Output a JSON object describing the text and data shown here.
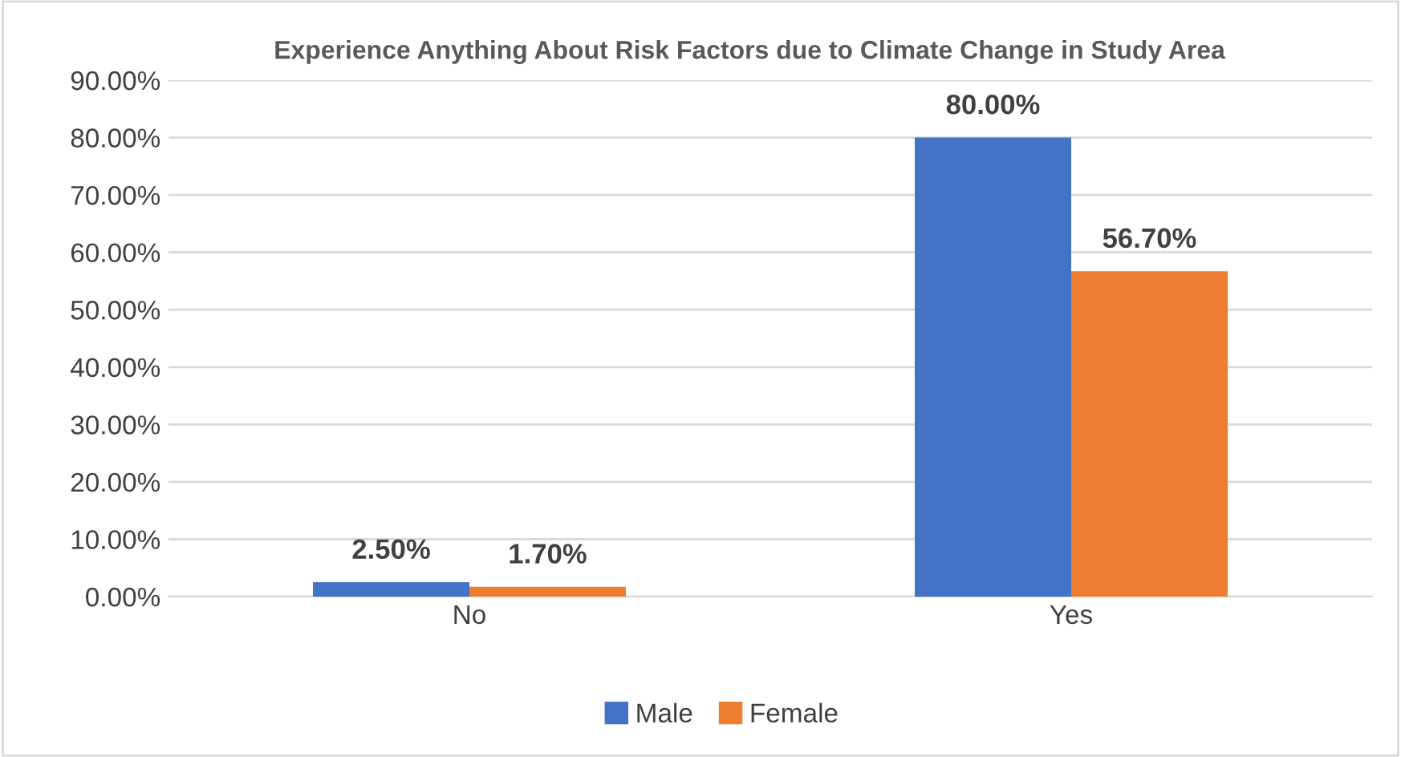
{
  "chart_data": {
    "type": "bar",
    "title": "Experience Anything About Risk Factors due to Climate Change in Study Area",
    "categories": [
      "No",
      "Yes"
    ],
    "series": [
      {
        "name": "Male",
        "color": "#4472c4",
        "values": [
          2.5,
          80
        ],
        "value_labels": [
          "2.50%",
          "80.00%"
        ]
      },
      {
        "name": "Female",
        "color": "#ed7d31",
        "values": [
          1.7,
          56.7
        ],
        "value_labels": [
          "1.70%",
          "56.70%"
        ]
      }
    ],
    "ylim": [
      0,
      90
    ],
    "yticks": [
      {
        "value": 0,
        "label": "0.00%"
      },
      {
        "value": 10,
        "label": "10.00%"
      },
      {
        "value": 20,
        "label": "20.00%"
      },
      {
        "value": 30,
        "label": "30.00%"
      },
      {
        "value": 40,
        "label": "40.00%"
      },
      {
        "value": 50,
        "label": "50.00%"
      },
      {
        "value": 60,
        "label": "60.00%"
      },
      {
        "value": 70,
        "label": "70.00%"
      },
      {
        "value": 80,
        "label": "80.00%"
      },
      {
        "value": 90,
        "label": "90.00%"
      }
    ],
    "grid": "y",
    "legend": "bottom"
  }
}
